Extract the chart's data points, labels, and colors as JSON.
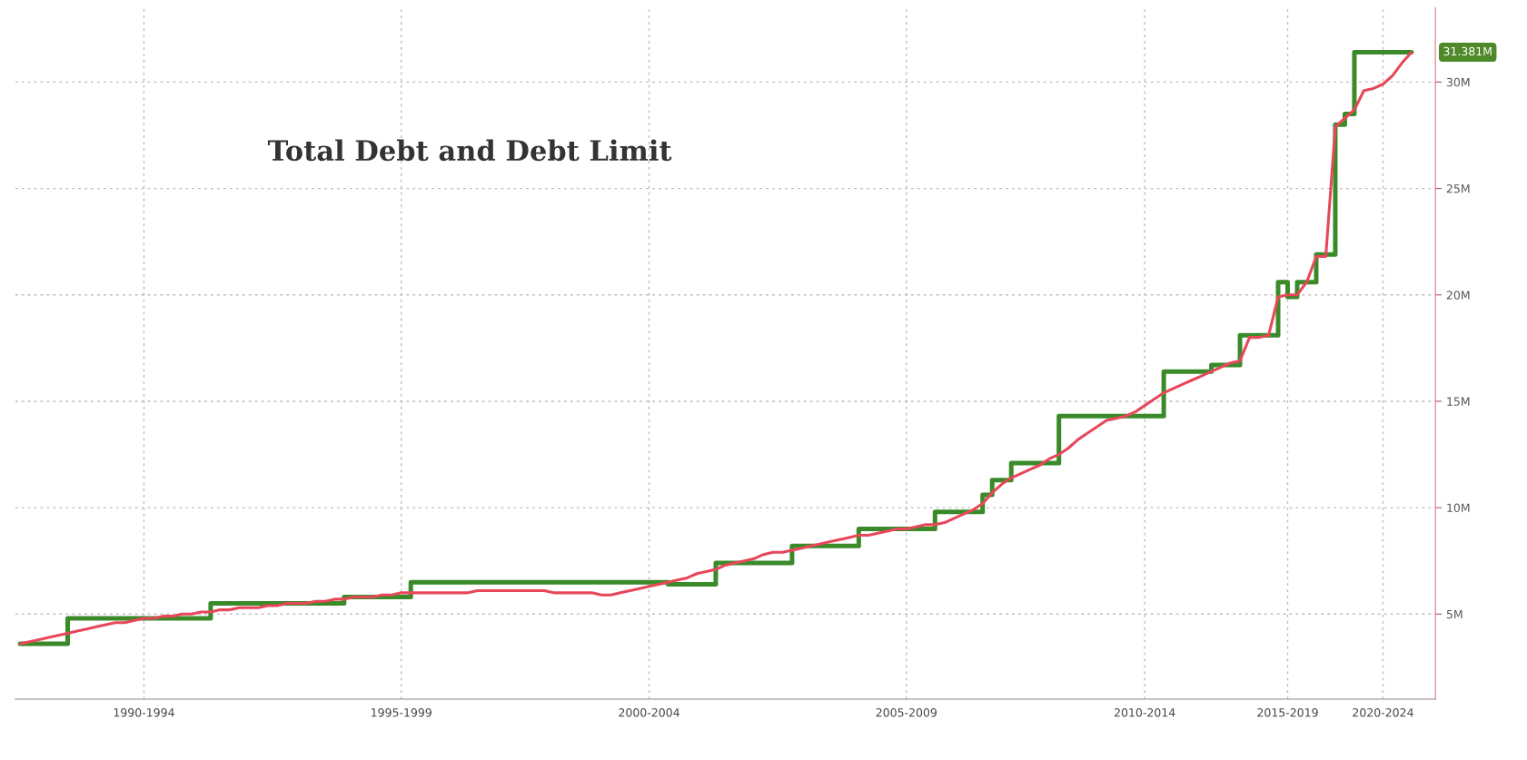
{
  "chart_data": {
    "type": "line",
    "title": "Total Debt and Debt Limit",
    "categories": [
      null,
      null,
      null,
      null,
      null,
      null,
      null,
      null,
      null,
      null,
      null,
      null,
      null,
      "1990-1994",
      null,
      null,
      null,
      null,
      null,
      null,
      null,
      null,
      null,
      null,
      null,
      null,
      null,
      null,
      null,
      null,
      null,
      null,
      null,
      null,
      null,
      null,
      null,
      null,
      null,
      null,
      "1995-1999",
      null,
      null,
      null,
      null,
      null,
      null,
      null,
      null,
      null,
      null,
      null,
      null,
      null,
      null,
      null,
      null,
      null,
      null,
      null,
      null,
      null,
      null,
      null,
      null,
      null,
      "2000-2004",
      null,
      null,
      null,
      null,
      null,
      null,
      null,
      null,
      null,
      null,
      null,
      null,
      null,
      null,
      null,
      null,
      null,
      null,
      null,
      null,
      null,
      null,
      null,
      null,
      null,
      null,
      "2005-2009",
      null,
      null,
      null,
      null,
      null,
      null,
      null,
      null,
      null,
      null,
      null,
      null,
      null,
      null,
      null,
      null,
      null,
      null,
      null,
      null,
      null,
      null,
      null,
      null,
      "2010-2014",
      null,
      null,
      null,
      null,
      null,
      null,
      null,
      null,
      null,
      null,
      null,
      null,
      null,
      null,
      "2015-2019",
      null,
      null,
      null,
      null,
      null,
      null,
      null,
      null,
      null,
      "2020-2024",
      null,
      null,
      null,
      null,
      null
    ],
    "series": [
      {
        "type": "step",
        "color": "#3a8a2a",
        "values": [
          3.6,
          3.6,
          3.6,
          3.6,
          3.6,
          4.8,
          4.8,
          4.8,
          4.8,
          4.8,
          4.8,
          4.8,
          4.8,
          4.8,
          4.8,
          4.8,
          4.8,
          4.8,
          4.8,
          4.8,
          5.5,
          5.5,
          5.5,
          5.5,
          5.5,
          5.5,
          5.5,
          5.5,
          5.5,
          5.5,
          5.5,
          5.5,
          5.5,
          5.5,
          5.8,
          5.8,
          5.8,
          5.8,
          5.8,
          5.8,
          5.8,
          6.5,
          6.5,
          6.5,
          6.5,
          6.5,
          6.5,
          6.5,
          6.5,
          6.5,
          6.5,
          6.5,
          6.5,
          6.5,
          6.5,
          6.5,
          6.5,
          6.5,
          6.5,
          6.5,
          6.5,
          6.5,
          6.5,
          6.5,
          6.5,
          6.5,
          6.5,
          6.5,
          6.4,
          6.4,
          6.4,
          6.4,
          6.4,
          7.4,
          7.4,
          7.4,
          7.4,
          7.4,
          7.4,
          7.4,
          7.4,
          8.2,
          8.2,
          8.2,
          8.2,
          8.2,
          8.2,
          8.2,
          9.0,
          9.0,
          9.0,
          9.0,
          9.0,
          9.0,
          9.0,
          9.0,
          9.8,
          9.8,
          9.8,
          9.8,
          9.8,
          10.6,
          11.3,
          11.3,
          12.1,
          12.1,
          12.1,
          12.1,
          12.1,
          14.3,
          14.3,
          14.3,
          14.3,
          14.3,
          14.3,
          14.3,
          14.3,
          14.3,
          14.3,
          14.3,
          16.4,
          16.4,
          16.4,
          16.4,
          16.4,
          16.7,
          16.7,
          16.7,
          18.1,
          18.1,
          18.1,
          18.1,
          20.6,
          19.9,
          20.6,
          20.6,
          21.9,
          21.9,
          28.0,
          28.5,
          31.4,
          31.4,
          31.4,
          31.4,
          31.4,
          31.4,
          31.4,
          null,
          null
        ]
      },
      {
        "color": "#e8475a",
        "values": [
          3.6,
          3.7,
          3.8,
          3.9,
          4.0,
          4.1,
          4.2,
          4.3,
          4.4,
          4.5,
          4.6,
          4.6,
          4.7,
          4.8,
          4.8,
          4.9,
          4.9,
          5.0,
          5.0,
          5.1,
          5.1,
          5.2,
          5.2,
          5.3,
          5.3,
          5.3,
          5.4,
          5.4,
          5.5,
          5.5,
          5.5,
          5.6,
          5.6,
          5.7,
          5.7,
          5.8,
          5.8,
          5.8,
          5.9,
          5.9,
          6.0,
          6.0,
          6.0,
          6.0,
          6.0,
          6.0,
          6.0,
          6.0,
          6.1,
          6.1,
          6.1,
          6.1,
          6.1,
          6.1,
          6.1,
          6.1,
          6.0,
          6.0,
          6.0,
          6.0,
          6.0,
          5.9,
          5.9,
          6.0,
          6.1,
          6.2,
          6.3,
          6.4,
          6.5,
          6.6,
          6.7,
          6.9,
          7.0,
          7.1,
          7.3,
          7.4,
          7.5,
          7.6,
          7.8,
          7.9,
          7.9,
          8.0,
          8.1,
          8.2,
          8.3,
          8.4,
          8.5,
          8.6,
          8.7,
          8.7,
          8.8,
          8.9,
          9.0,
          9.0,
          9.1,
          9.2,
          9.2,
          9.3,
          9.5,
          9.7,
          9.9,
          10.2,
          10.7,
          11.1,
          11.4,
          11.6,
          11.8,
          12.0,
          12.3,
          12.5,
          12.8,
          13.2,
          13.5,
          13.8,
          14.1,
          14.2,
          14.3,
          14.5,
          14.8,
          15.1,
          15.4,
          15.6,
          15.8,
          16.0,
          16.2,
          16.4,
          16.6,
          16.8,
          16.9,
          18.0,
          18.0,
          18.1,
          19.9,
          20.0,
          20.0,
          20.6,
          21.8,
          21.8,
          27.9,
          28.3,
          28.7,
          29.6,
          29.7,
          29.9,
          30.3,
          30.9,
          31.4,
          null,
          null
        ]
      }
    ],
    "annotations": [
      "31.381M"
    ],
    "ylim": [
      1,
      33.5
    ],
    "yticks": [
      {
        "value": 5,
        "label": "5M"
      },
      {
        "value": 10,
        "label": "10M"
      },
      {
        "value": 15,
        "label": "15M"
      },
      {
        "value": 20,
        "label": "20M"
      },
      {
        "value": 25,
        "label": "25M"
      },
      {
        "value": 30,
        "label": "30M"
      }
    ],
    "grid": true
  }
}
